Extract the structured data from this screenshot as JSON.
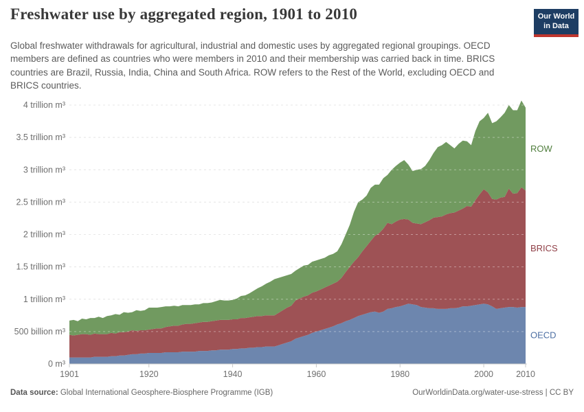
{
  "header": {
    "title": "Freshwater use by aggregated region, 1901 to 2010",
    "subtitle": "Global freshwater withdrawals for agricultural, industrial and domestic uses by aggregated regional groupings. OECD members are defined as countries who were members in 2010 and their membership was carried back in time. BRICS countries are Brazil, Russia, India, China and South Africa. ROW refers to the Rest of the World, excluding OECD and BRICS countries.",
    "logo": {
      "line1": "Our World",
      "line2": "in Data",
      "bg_color": "#1d3d63",
      "accent_color": "#bf362e"
    }
  },
  "chart_data": {
    "type": "area",
    "stacked": true,
    "title": "Freshwater use by aggregated region, 1901 to 2010",
    "unit": "m³",
    "x_start": 1901,
    "x_end": 2010,
    "x_step": 1,
    "x_ticks": [
      1901,
      1920,
      1940,
      1960,
      1980,
      2000,
      2010
    ],
    "y_ticks": [
      {
        "value": 0,
        "label": "0 m³"
      },
      {
        "value": 0.5,
        "label": "500 billion m³"
      },
      {
        "value": 1,
        "label": "1 trillion m³"
      },
      {
        "value": 1.5,
        "label": "1.5 trillion m³"
      },
      {
        "value": 2,
        "label": "2 trillion m³"
      },
      {
        "value": 2.5,
        "label": "2.5 trillion m³"
      },
      {
        "value": 3,
        "label": "3 trillion m³"
      },
      {
        "value": 3.5,
        "label": "3.5 trillion m³"
      },
      {
        "value": 4,
        "label": "4 trillion m³"
      }
    ],
    "ylim": [
      0,
      4.17
    ],
    "values_unit": "trillion m³ per year, estimated from chart",
    "grid": "dashed",
    "legend_position": "right-of-plot",
    "series": [
      {
        "name": "OECD",
        "color": "#6d86ae",
        "label_color": "#4d6fa3",
        "values": [
          0.1,
          0.1,
          0.1,
          0.1,
          0.1,
          0.1,
          0.11,
          0.11,
          0.11,
          0.11,
          0.12,
          0.12,
          0.13,
          0.13,
          0.14,
          0.15,
          0.15,
          0.16,
          0.16,
          0.17,
          0.17,
          0.17,
          0.17,
          0.18,
          0.18,
          0.18,
          0.18,
          0.19,
          0.19,
          0.19,
          0.19,
          0.2,
          0.2,
          0.2,
          0.21,
          0.21,
          0.22,
          0.22,
          0.22,
          0.23,
          0.23,
          0.24,
          0.24,
          0.25,
          0.25,
          0.26,
          0.26,
          0.27,
          0.27,
          0.27,
          0.29,
          0.31,
          0.33,
          0.35,
          0.39,
          0.41,
          0.43,
          0.45,
          0.48,
          0.5,
          0.52,
          0.54,
          0.56,
          0.58,
          0.61,
          0.63,
          0.66,
          0.68,
          0.71,
          0.74,
          0.76,
          0.78,
          0.8,
          0.81,
          0.79,
          0.81,
          0.85,
          0.86,
          0.88,
          0.89,
          0.91,
          0.93,
          0.92,
          0.91,
          0.88,
          0.87,
          0.86,
          0.86,
          0.85,
          0.85,
          0.85,
          0.86,
          0.86,
          0.87,
          0.89,
          0.89,
          0.9,
          0.91,
          0.92,
          0.93,
          0.92,
          0.89,
          0.85,
          0.86,
          0.87,
          0.88,
          0.88,
          0.87,
          0.88,
          0.88
        ]
      },
      {
        "name": "BRICS",
        "color": "#9e5255",
        "label_color": "#8f3e46",
        "values": [
          0.35,
          0.34,
          0.35,
          0.36,
          0.36,
          0.35,
          0.36,
          0.35,
          0.35,
          0.35,
          0.36,
          0.35,
          0.36,
          0.36,
          0.36,
          0.37,
          0.36,
          0.36,
          0.36,
          0.36,
          0.37,
          0.38,
          0.38,
          0.39,
          0.4,
          0.41,
          0.41,
          0.42,
          0.43,
          0.43,
          0.44,
          0.44,
          0.45,
          0.45,
          0.45,
          0.46,
          0.46,
          0.46,
          0.46,
          0.46,
          0.46,
          0.47,
          0.47,
          0.47,
          0.48,
          0.48,
          0.48,
          0.48,
          0.48,
          0.48,
          0.5,
          0.52,
          0.54,
          0.55,
          0.59,
          0.6,
          0.61,
          0.61,
          0.62,
          0.62,
          0.63,
          0.64,
          0.65,
          0.66,
          0.66,
          0.7,
          0.76,
          0.82,
          0.87,
          0.91,
          0.98,
          1.04,
          1.1,
          1.17,
          1.23,
          1.28,
          1.33,
          1.3,
          1.32,
          1.34,
          1.33,
          1.3,
          1.26,
          1.26,
          1.28,
          1.32,
          1.36,
          1.4,
          1.42,
          1.43,
          1.46,
          1.47,
          1.48,
          1.5,
          1.51,
          1.55,
          1.53,
          1.62,
          1.7,
          1.77,
          1.73,
          1.66,
          1.69,
          1.71,
          1.71,
          1.83,
          1.75,
          1.77,
          1.85,
          1.8
        ]
      },
      {
        "name": "ROW",
        "color": "#719a60",
        "label_color": "#4f7d3c",
        "values": [
          0.22,
          0.24,
          0.21,
          0.24,
          0.23,
          0.26,
          0.24,
          0.27,
          0.25,
          0.28,
          0.27,
          0.3,
          0.27,
          0.31,
          0.29,
          0.28,
          0.32,
          0.3,
          0.31,
          0.34,
          0.33,
          0.32,
          0.33,
          0.32,
          0.31,
          0.31,
          0.3,
          0.3,
          0.29,
          0.29,
          0.29,
          0.28,
          0.29,
          0.29,
          0.29,
          0.3,
          0.31,
          0.3,
          0.3,
          0.3,
          0.32,
          0.34,
          0.35,
          0.37,
          0.4,
          0.43,
          0.46,
          0.49,
          0.52,
          0.56,
          0.54,
          0.52,
          0.5,
          0.49,
          0.46,
          0.47,
          0.48,
          0.47,
          0.48,
          0.48,
          0.47,
          0.46,
          0.47,
          0.46,
          0.47,
          0.52,
          0.58,
          0.65,
          0.77,
          0.85,
          0.8,
          0.78,
          0.82,
          0.79,
          0.75,
          0.78,
          0.74,
          0.84,
          0.86,
          0.88,
          0.91,
          0.85,
          0.8,
          0.83,
          0.85,
          0.87,
          0.93,
          1.0,
          1.08,
          1.1,
          1.12,
          1.05,
          0.99,
          1.03,
          1.05,
          1.0,
          0.95,
          1.07,
          1.13,
          1.1,
          1.23,
          1.17,
          1.21,
          1.24,
          1.3,
          1.29,
          1.29,
          1.28,
          1.34,
          1.28
        ]
      }
    ]
  },
  "footer": {
    "datasource_label": "Data source:",
    "datasource_value": " Global International Geosphere-Biosphere Programme (IGB)",
    "url": "OurWorldinData.org/water-use-stress",
    "separator": " | ",
    "license": "CC BY"
  }
}
